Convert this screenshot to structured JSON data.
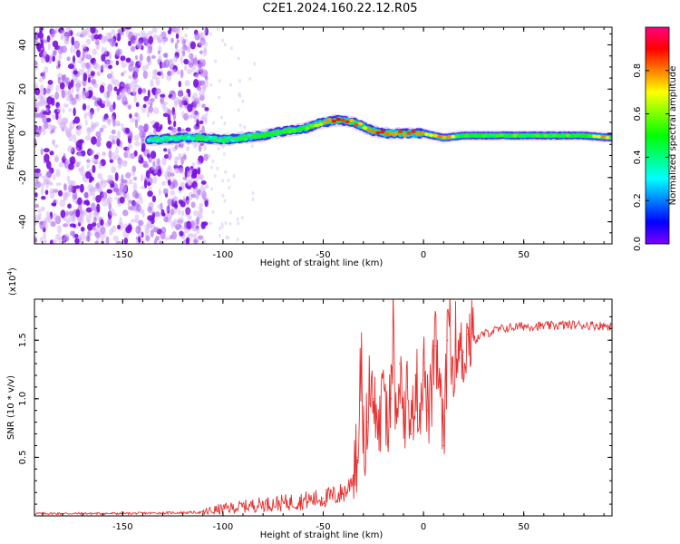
{
  "title": "C2E1.2024.160.22.12.R05",
  "chart_data": [
    {
      "type": "heatmap",
      "xlabel": "Height of straight line (km)",
      "ylabel": "Frequency (Hz)",
      "xlim": [
        -194,
        94
      ],
      "ylim": [
        -50,
        48
      ],
      "x_ticks": [
        -150,
        -100,
        -50,
        0,
        50
      ],
      "y_ticks": [
        -40,
        -20,
        0,
        20,
        40
      ],
      "colorbar": {
        "label": "Normalized spectral amplitude",
        "range": [
          0,
          1
        ],
        "ticks": [
          "0.0",
          "0.2",
          "0.4",
          "0.6",
          "0.8"
        ]
      },
      "ridge": {
        "x": [
          -137,
          -120,
          -110,
          -100,
          -90,
          -80,
          -70,
          -60,
          -50,
          -42,
          -35,
          -30,
          -25,
          -20,
          -15,
          -10,
          -5,
          0,
          5,
          10,
          20,
          40,
          60,
          80,
          94
        ],
        "frequency": [
          -3,
          -2,
          -2,
          -3,
          -2,
          -1,
          1,
          2,
          5,
          6,
          5,
          3,
          1,
          0,
          0,
          0,
          0,
          0,
          -1,
          -2,
          -1,
          -1,
          -1,
          -1,
          -2
        ],
        "amplitude": [
          0.3,
          0.35,
          0.4,
          0.4,
          0.4,
          0.45,
          0.5,
          0.55,
          0.75,
          0.85,
          0.8,
          0.75,
          0.8,
          0.85,
          0.85,
          0.85,
          0.8,
          0.75,
          0.7,
          0.8,
          0.5,
          0.5,
          0.5,
          0.5,
          0.85
        ]
      },
      "noise_region_x": [
        -194,
        -108
      ]
    },
    {
      "type": "line",
      "xlabel": "Height of straight line (km)",
      "ylabel": "SNR (10 * v/v)",
      "y_multiplier": "(x10",
      "y_multiplier_exp": "4",
      "y_multiplier_close": ")",
      "xlim": [
        -194,
        94
      ],
      "ylim": [
        0,
        1.85
      ],
      "x_ticks": [
        -150,
        -100,
        -50,
        0,
        50
      ],
      "y_ticks": [
        "0.5",
        "1.0",
        "1.5"
      ],
      "series": [
        {
          "color": "#e53030",
          "x": [
            -194,
            -150,
            -110,
            -100,
            -90,
            -80,
            -70,
            -60,
            -50,
            -42,
            -38,
            -35,
            -33,
            -31,
            -30,
            -28,
            -25,
            -22,
            -20,
            -18,
            -16,
            -15,
            -14,
            -12,
            -10,
            -8,
            -6,
            -4,
            -2,
            0,
            2,
            4,
            6,
            8,
            10,
            12,
            13,
            14,
            16,
            18,
            20,
            22,
            25,
            30,
            35,
            40,
            50,
            60,
            70,
            80,
            94
          ],
          "y": [
            0.02,
            0.02,
            0.03,
            0.06,
            0.08,
            0.1,
            0.11,
            0.13,
            0.15,
            0.18,
            0.22,
            0.35,
            0.5,
            1.4,
            0.6,
            0.8,
            1.0,
            0.7,
            1.2,
            0.8,
            1.0,
            1.82,
            0.9,
            1.3,
            0.8,
            1.1,
            0.7,
            1.2,
            0.9,
            1.3,
            0.9,
            1.0,
            1.45,
            1.1,
            0.6,
            1.5,
            1.88,
            1.2,
            1.5,
            1.35,
            1.4,
            1.55,
            1.5,
            1.55,
            1.58,
            1.6,
            1.62,
            1.62,
            1.63,
            1.63,
            1.62
          ]
        }
      ]
    }
  ]
}
